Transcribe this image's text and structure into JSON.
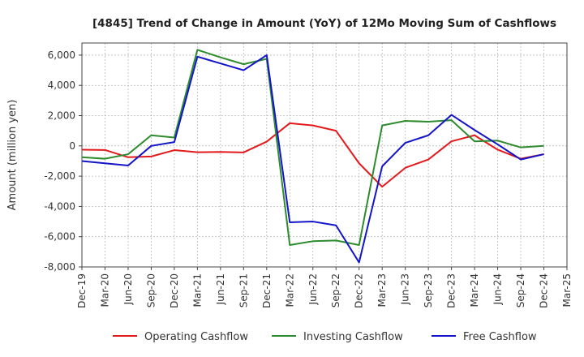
{
  "chart_data": {
    "type": "line",
    "title": "[4845]  Trend of Change in Amount (YoY) of 12Mo Moving Sum of Cashflows",
    "xlabel": "",
    "ylabel": "Amount (million yen)",
    "ylim": [
      -8000,
      6800
    ],
    "yticks": [
      6000,
      4000,
      2000,
      0,
      -2000,
      -4000,
      -6000,
      -8000
    ],
    "ytick_labels": [
      "6,000",
      "4,000",
      "2,000",
      "0",
      "-2,000",
      "-4,000",
      "-6,000",
      "-8,000"
    ],
    "xtick_labels": [
      "Dec-19",
      "Mar-20",
      "Jun-20",
      "Sep-20",
      "Dec-20",
      "Mar-21",
      "Jun-21",
      "Sep-21",
      "Dec-21",
      "Mar-22",
      "Jun-22",
      "Sep-22",
      "Dec-22",
      "Mar-23",
      "Jun-23",
      "Sep-23",
      "Dec-23",
      "Mar-24",
      "Jun-24",
      "Sep-24",
      "Dec-24",
      "Mar-25"
    ],
    "categories": [
      "Dec-19",
      "Mar-20",
      "Jun-20",
      "Sep-20",
      "Dec-20",
      "Mar-21",
      "Jun-21",
      "Sep-21",
      "Dec-21",
      "Mar-22",
      "Jun-22",
      "Sep-22",
      "Dec-22",
      "Mar-23",
      "Jun-23",
      "Sep-23",
      "Dec-23",
      "Mar-24",
      "Jun-24",
      "Sep-24",
      "Dec-24"
    ],
    "grid": true,
    "legend_position": "bottom",
    "series": [
      {
        "name": "Operating Cashflow",
        "color": "#e31a1c",
        "values": [
          -250,
          -270,
          -750,
          -700,
          -280,
          -420,
          -400,
          -430,
          280,
          1500,
          1350,
          1000,
          -1150,
          -2700,
          -1450,
          -900,
          300,
          700,
          -250,
          -850,
          -550
        ]
      },
      {
        "name": "Investing Cashflow",
        "color": "#2e8b2e",
        "values": [
          -750,
          -850,
          -550,
          700,
          550,
          6350,
          5850,
          5400,
          5750,
          -6550,
          -6300,
          -6250,
          -6550,
          1350,
          1650,
          1600,
          1700,
          300,
          350,
          -100,
          0
        ]
      },
      {
        "name": "Free Cashflow",
        "color": "#1414c8",
        "values": [
          -1000,
          -1150,
          -1300,
          0,
          250,
          5900,
          5450,
          5000,
          6000,
          -5050,
          -5000,
          -5250,
          -7700,
          -1350,
          200,
          700,
          2050,
          1050,
          100,
          -900,
          -550
        ]
      }
    ]
  }
}
